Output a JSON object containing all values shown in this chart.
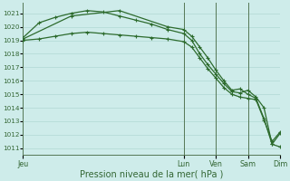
{
  "bg_color": "#ceecea",
  "grid_color": "#b0d8d4",
  "line_color": "#2d6b2d",
  "marker_color": "#2d6b2d",
  "xlabel": "Pression niveau de la mer( hPa )",
  "xlabel_fontsize": 7.0,
  "ylabel_values": [
    1011,
    1012,
    1013,
    1014,
    1015,
    1016,
    1017,
    1018,
    1019,
    1020,
    1021
  ],
  "ylim": [
    1010.5,
    1021.8
  ],
  "xlim": [
    0,
    96
  ],
  "day_labels": [
    "Jeu",
    "Lun",
    "Ven",
    "Sam",
    "Dim"
  ],
  "day_positions": [
    0,
    60,
    72,
    84,
    96
  ],
  "line1_x": [
    0,
    6,
    12,
    18,
    24,
    30,
    36,
    42,
    48,
    54,
    60,
    63,
    66,
    69,
    72,
    75,
    78,
    81,
    84,
    87,
    90,
    93,
    96
  ],
  "line1_y": [
    1019.2,
    1020.3,
    1020.7,
    1021.0,
    1021.2,
    1021.1,
    1020.8,
    1020.5,
    1020.2,
    1019.8,
    1019.5,
    1019.0,
    1018.0,
    1017.2,
    1016.5,
    1015.8,
    1015.2,
    1015.1,
    1015.3,
    1014.8,
    1014.0,
    1011.3,
    1011.1
  ],
  "line2_x": [
    0,
    6,
    12,
    18,
    24,
    30,
    36,
    42,
    48,
    54,
    60,
    63,
    66,
    69,
    72,
    75,
    78,
    81,
    84,
    87,
    90,
    93,
    96
  ],
  "line2_y": [
    1019.0,
    1019.1,
    1019.3,
    1019.5,
    1019.6,
    1019.5,
    1019.4,
    1019.3,
    1019.2,
    1019.1,
    1018.9,
    1018.5,
    1017.7,
    1016.9,
    1016.2,
    1015.5,
    1015.0,
    1014.8,
    1014.7,
    1014.6,
    1013.1,
    1011.5,
    1012.2
  ],
  "line3_x": [
    0,
    18,
    36,
    54,
    60,
    63,
    66,
    69,
    72,
    75,
    78,
    81,
    84,
    87,
    90,
    93,
    96
  ],
  "line3_y": [
    1019.1,
    1020.8,
    1021.2,
    1020.0,
    1019.8,
    1019.3,
    1018.5,
    1017.7,
    1016.8,
    1016.0,
    1015.3,
    1015.4,
    1015.0,
    1014.7,
    1013.2,
    1011.3,
    1012.1
  ]
}
